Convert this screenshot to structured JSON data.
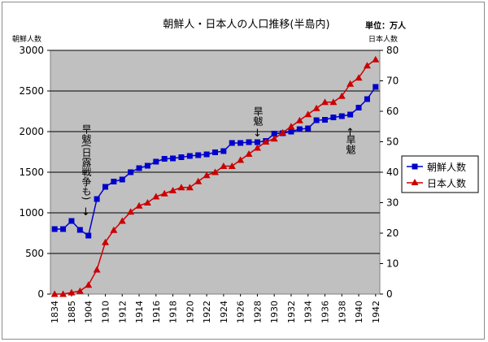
{
  "chart_data": {
    "type": "line",
    "title": "朝鮮人・日本人の人口推移(半島内)",
    "unit_label": "単位：万人",
    "y_left_label": "朝鮮人数",
    "y_right_label": "日本人数",
    "y_left_ticks": [
      "0",
      "500",
      "1000",
      "1500",
      "2000",
      "2500",
      "3000"
    ],
    "y_right_ticks": [
      "0",
      "10",
      "20",
      "30",
      "40",
      "50",
      "60",
      "70",
      "80"
    ],
    "y_left_lim": [
      0,
      3000
    ],
    "y_right_lim": [
      0,
      80
    ],
    "x_tick_labels": [
      "1834",
      "1885",
      "1904",
      "1910",
      "1912",
      "1914",
      "1916",
      "1918",
      "1920",
      "1922",
      "1924",
      "1926",
      "1928",
      "1930",
      "1932",
      "1934",
      "1936",
      "1938",
      "1940",
      "1942"
    ],
    "grid": true,
    "legend_position": "right",
    "series": [
      {
        "name": "朝鮮人数",
        "axis": "left",
        "color": "#0000cc",
        "marker": "square",
        "values": [
          800,
          800,
          900,
          790,
          720,
          1170,
          1320,
          1385,
          1410,
          1500,
          1550,
          1580,
          1630,
          1665,
          1670,
          1685,
          1700,
          1710,
          1720,
          1745,
          1760,
          1860,
          1860,
          1870,
          1870,
          1885,
          1975,
          1980,
          2000,
          2030,
          2040,
          2140,
          2145,
          2175,
          2190,
          2210,
          2295,
          2400,
          2550
        ]
      },
      {
        "name": "日本人数",
        "axis": "right",
        "color": "#cc0000",
        "marker": "triangle",
        "values": [
          0,
          0,
          0.5,
          1,
          3,
          8,
          17,
          21,
          24,
          27,
          29,
          30,
          32,
          33,
          34,
          35,
          35,
          37,
          39,
          40,
          42,
          42,
          44,
          46,
          48,
          50,
          51,
          53,
          55,
          57,
          59,
          61,
          63,
          63,
          65,
          69,
          71,
          75,
          77
        ]
      }
    ],
    "annotations": [
      {
        "name": "drought-war-annotation",
        "text": "旱魃(日露戦争も)",
        "arrow": "↓"
      },
      {
        "name": "drought-annotation-1929",
        "text": "旱魃",
        "arrow": "↓"
      },
      {
        "name": "drought-annotation-1939",
        "text": "旱魃",
        "arrow": "↑"
      }
    ]
  }
}
